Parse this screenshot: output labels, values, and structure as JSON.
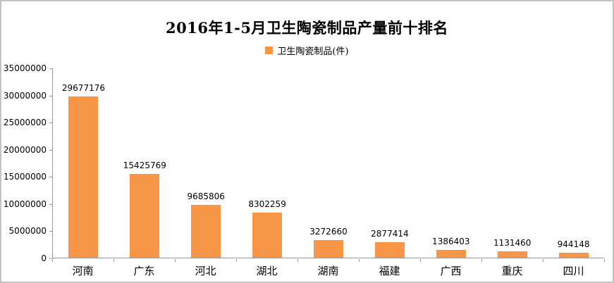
{
  "window": {
    "background": "#ffffff",
    "frame_border_color": "#c3c3c3"
  },
  "chart_data": {
    "type": "bar",
    "title": "2016年1-5月卫生陶瓷制品产量前十排名",
    "legend": {
      "label": "卫生陶瓷制品(件)",
      "marker_color": "#F79646",
      "position": "top"
    },
    "categories": [
      "河南",
      "广东",
      "河北",
      "湖北",
      "湖南",
      "福建",
      "广西",
      "重庆",
      "四川"
    ],
    "series": [
      {
        "name": "卫生陶瓷制品(件)",
        "values": [
          29677176,
          15425769,
          9685806,
          8302259,
          3272660,
          2877414,
          1386403,
          1131460,
          944148
        ]
      }
    ],
    "data_labels_shown": true,
    "xlabel": "",
    "ylabel": "",
    "ylim": [
      0,
      35000000
    ],
    "ytick_step": 5000000,
    "yticks": [
      0,
      5000000,
      10000000,
      15000000,
      20000000,
      25000000,
      30000000,
      35000000
    ],
    "grid": false,
    "bar_color": "#F79646",
    "axis_color": "#969696",
    "text_color": "#000000"
  }
}
